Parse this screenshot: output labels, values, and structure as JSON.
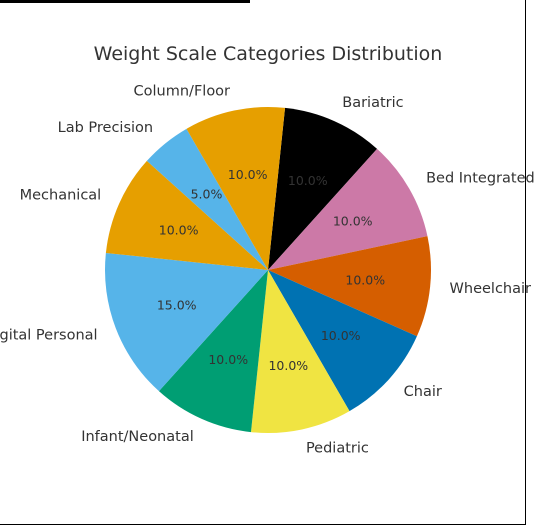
{
  "chart_data": {
    "type": "pie",
    "title": "Weight Scale Categories Distribution",
    "slices": [
      {
        "label": "Bariatric",
        "value": 10.0,
        "pct_text": "10.0%",
        "color": "#000000"
      },
      {
        "label": "Bed Integrated",
        "value": 10.0,
        "pct_text": "10.0%",
        "color": "#CC79A7"
      },
      {
        "label": "Wheelchair",
        "value": 10.0,
        "pct_text": "10.0%",
        "color": "#D55E00"
      },
      {
        "label": "Chair",
        "value": 10.0,
        "pct_text": "10.0%",
        "color": "#0072B2"
      },
      {
        "label": "Pediatric",
        "value": 10.0,
        "pct_text": "10.0%",
        "color": "#F0E442"
      },
      {
        "label": "Infant/Neonatal",
        "value": 10.0,
        "pct_text": "10.0%",
        "color": "#009E73"
      },
      {
        "label": "Digital Personal",
        "value": 15.0,
        "pct_text": "15.0%",
        "color": "#56B4E9"
      },
      {
        "label": "Mechanical",
        "value": 10.0,
        "pct_text": "10.0%",
        "color": "#E69F00"
      },
      {
        "label": "Lab Precision",
        "value": 5.0,
        "pct_text": "5.0%",
        "color": "#56B4E9"
      },
      {
        "label": "Column/Floor",
        "value": 10.0,
        "pct_text": "10.0%",
        "color": "#E69F00"
      }
    ]
  }
}
